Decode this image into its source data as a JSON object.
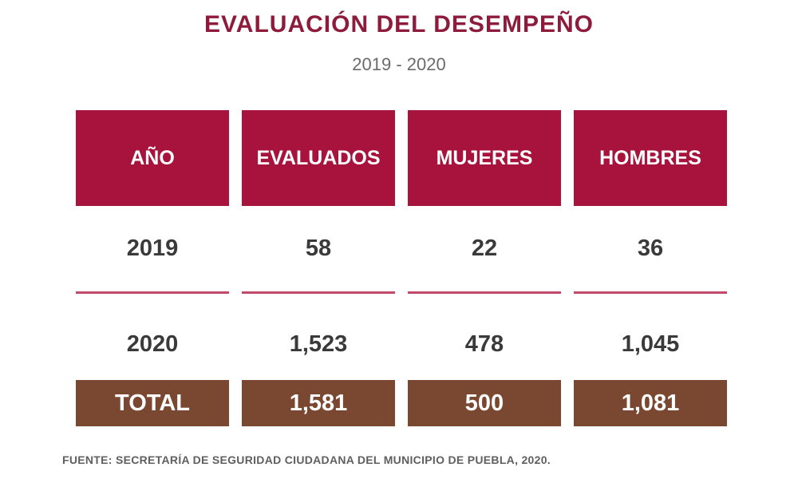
{
  "title": "EVALUACIÓN DEL DESEMPEÑO",
  "subtitle": "2019 - 2020",
  "colors": {
    "header_bg": "#a8133d",
    "title_text": "#8e1b3c",
    "divider": "#c04a6a",
    "total_bg": "#7a4731"
  },
  "chart_data": {
    "type": "table",
    "title": "EVALUACIÓN DEL DESEMPEÑO",
    "subtitle": "2019 - 2020",
    "columns": [
      "AÑO",
      "EVALUADOS",
      "MUJERES",
      "HOMBRES"
    ],
    "rows": [
      [
        "2019",
        "58",
        "22",
        "36"
      ],
      [
        "2020",
        "1,523",
        "478",
        "1,045"
      ]
    ],
    "total": [
      "TOTAL",
      "1,581",
      "500",
      "1,081"
    ]
  },
  "source": "FUENTE: SECRETARÍA DE SEGURIDAD CIUDADANA DEL MUNICIPIO DE PUEBLA, 2020."
}
